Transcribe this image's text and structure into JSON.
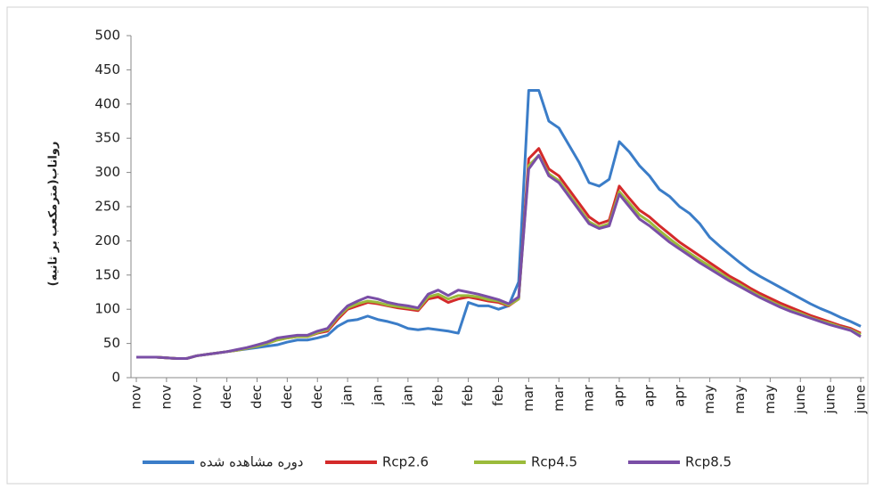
{
  "chart_data": {
    "type": "line",
    "y_label": "رواناب(مترمکعب بر ثانیه)",
    "categories": [
      "nov",
      null,
      null,
      "nov",
      null,
      null,
      "nov",
      null,
      null,
      "dec",
      null,
      null,
      "dec",
      null,
      null,
      "dec",
      null,
      null,
      "dec",
      null,
      null,
      "jan",
      null,
      null,
      "jan",
      null,
      null,
      "jan",
      null,
      null,
      "feb",
      null,
      null,
      "feb",
      null,
      null,
      "feb",
      null,
      null,
      "mar",
      null,
      null,
      "mar",
      null,
      null,
      "mar",
      null,
      null,
      "apr",
      null,
      null,
      "apr",
      null,
      null,
      "apr",
      null,
      null,
      "may",
      null,
      null,
      "may",
      null,
      null,
      "may",
      null,
      null,
      "june",
      null,
      null,
      "june",
      null,
      null,
      "june"
    ],
    "series": [
      {
        "name": "دوره مشاهده شده",
        "color": "#3b7dc8",
        "values": [
          30,
          30,
          30,
          29,
          28,
          28,
          32,
          34,
          36,
          38,
          40,
          42,
          44,
          46,
          48,
          52,
          55,
          55,
          58,
          62,
          75,
          83,
          85,
          90,
          85,
          82,
          78,
          72,
          70,
          72,
          70,
          68,
          65,
          110,
          105,
          105,
          100,
          105,
          140,
          420,
          420,
          375,
          365,
          340,
          315,
          285,
          280,
          290,
          345,
          330,
          310,
          295,
          275,
          265,
          250,
          240,
          225,
          205,
          192,
          180,
          168,
          157,
          148,
          140,
          132,
          124,
          116,
          108,
          101,
          95,
          88,
          82,
          75
        ]
      },
      {
        "name": "Rcp2.6",
        "color": "#d42a2a",
        "values": [
          30,
          30,
          30,
          29,
          28,
          28,
          32,
          34,
          36,
          38,
          40,
          43,
          46,
          50,
          55,
          58,
          60,
          60,
          65,
          68,
          85,
          100,
          105,
          110,
          108,
          105,
          102,
          100,
          98,
          115,
          118,
          110,
          115,
          118,
          115,
          112,
          110,
          105,
          115,
          320,
          335,
          305,
          295,
          275,
          255,
          235,
          225,
          230,
          280,
          262,
          245,
          235,
          222,
          210,
          198,
          188,
          178,
          168,
          158,
          148,
          140,
          131,
          123,
          116,
          109,
          103,
          97,
          91,
          86,
          81,
          76,
          72,
          65
        ]
      },
      {
        "name": "Rcp4.5",
        "color": "#9bbb3b",
        "values": [
          30,
          30,
          30,
          29,
          28,
          28,
          32,
          34,
          36,
          38,
          40,
          43,
          46,
          50,
          55,
          58,
          60,
          60,
          66,
          70,
          88,
          102,
          108,
          112,
          110,
          106,
          104,
          102,
          100,
          118,
          122,
          115,
          120,
          120,
          118,
          114,
          112,
          106,
          115,
          310,
          325,
          298,
          288,
          268,
          248,
          228,
          220,
          225,
          272,
          255,
          238,
          228,
          215,
          203,
          192,
          182,
          172,
          163,
          153,
          144,
          136,
          127,
          119,
          112,
          105,
          99,
          94,
          88,
          83,
          79,
          74,
          70,
          63
        ]
      },
      {
        "name": "Rcp8.5",
        "color": "#7a4ea6",
        "values": [
          30,
          30,
          30,
          29,
          28,
          28,
          32,
          34,
          36,
          38,
          41,
          44,
          48,
          52,
          58,
          60,
          62,
          62,
          68,
          72,
          90,
          105,
          112,
          118,
          115,
          110,
          107,
          105,
          102,
          122,
          128,
          120,
          128,
          125,
          122,
          118,
          114,
          108,
          118,
          305,
          325,
          295,
          285,
          265,
          245,
          225,
          218,
          222,
          268,
          250,
          232,
          222,
          210,
          198,
          188,
          178,
          168,
          159,
          150,
          141,
          133,
          125,
          117,
          110,
          103,
          97,
          92,
          87,
          82,
          77,
          73,
          69,
          60
        ]
      }
    ],
    "ylim": [
      0,
      500
    ],
    "yticks": [
      0,
      50,
      100,
      150,
      200,
      250,
      300,
      350,
      400,
      450,
      500
    ],
    "legend": "bottom",
    "grid": false
  }
}
